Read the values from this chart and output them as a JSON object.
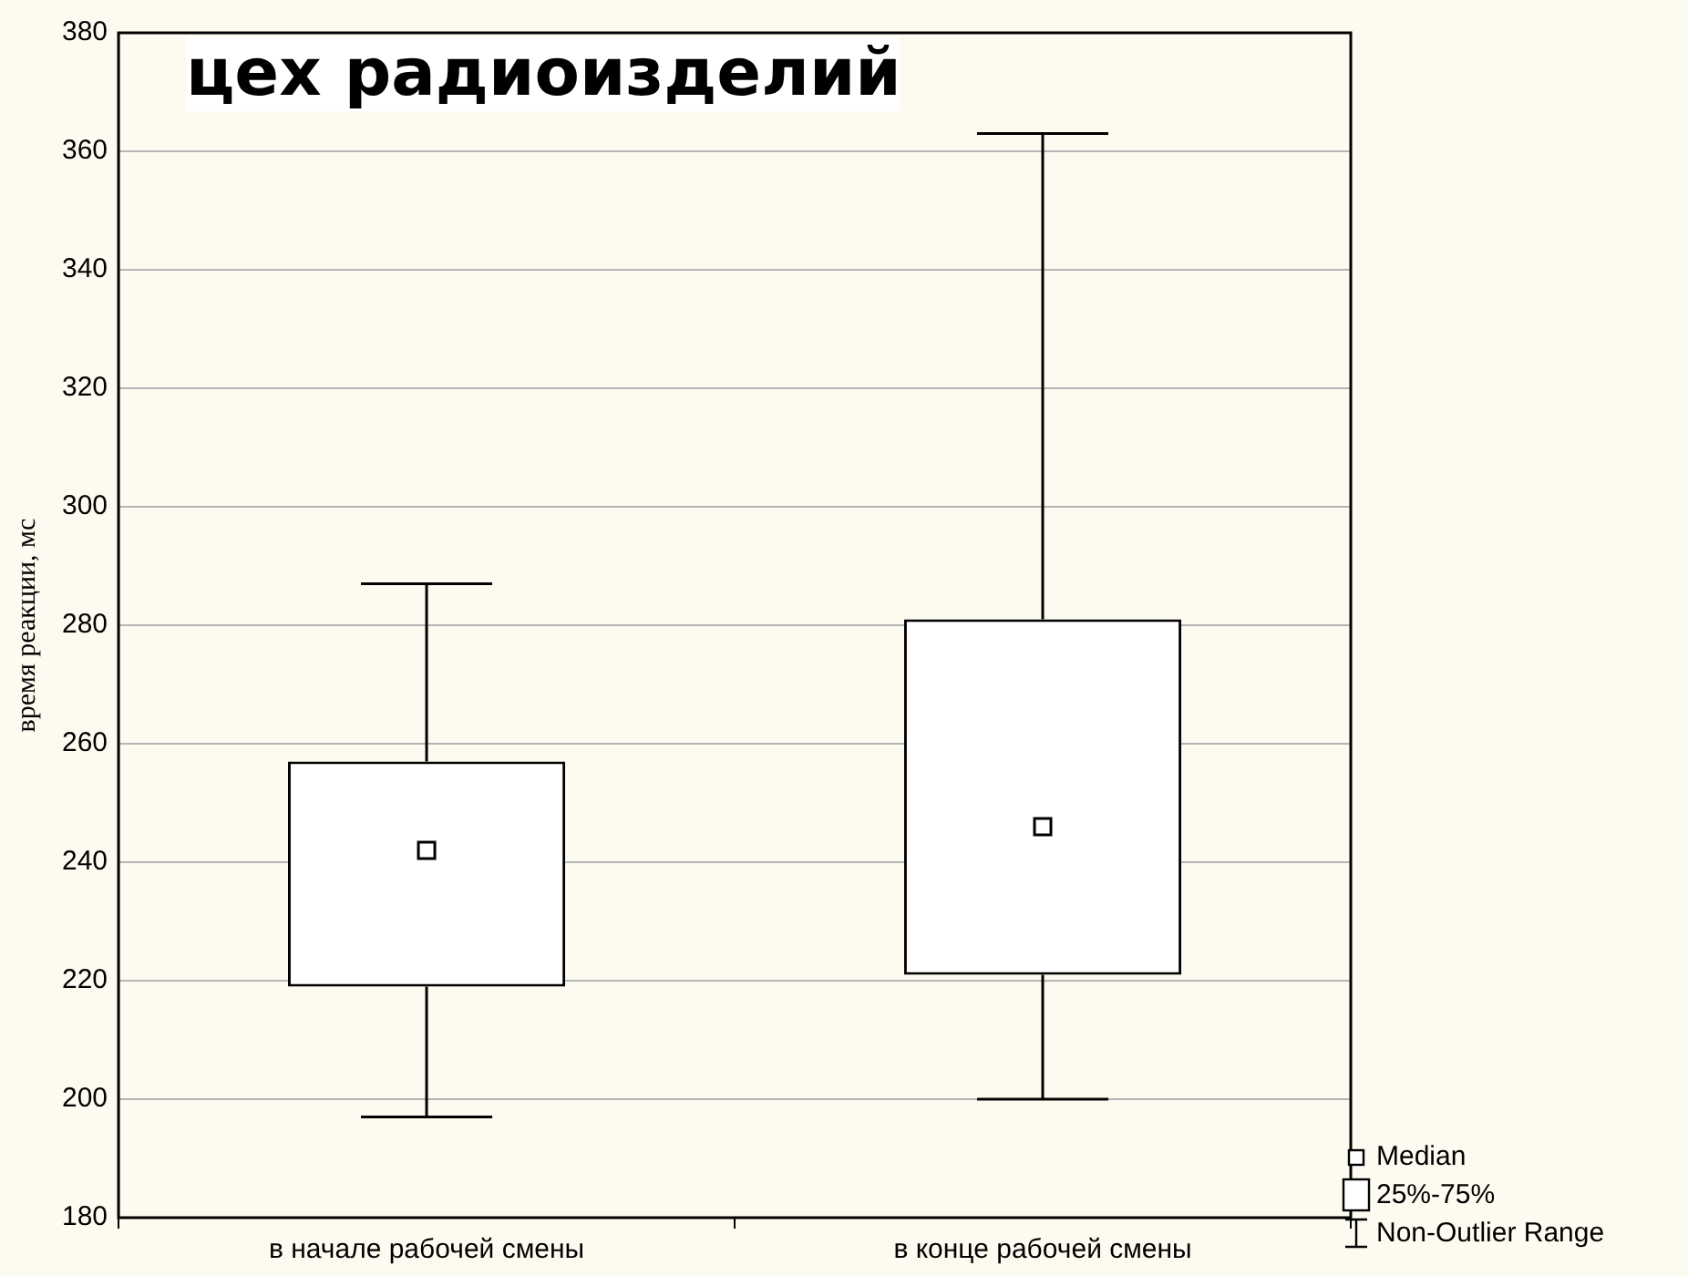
{
  "chart_data": {
    "type": "box",
    "title": "цех радиоизделий",
    "ylabel": "время реакции, мс",
    "categories": [
      "в начале рабочей смены",
      "в конце рабочей смены"
    ],
    "boxes": [
      {
        "low": 197,
        "q1": 219,
        "median": 242,
        "q3": 257,
        "high": 287
      },
      {
        "low": 200,
        "q1": 221,
        "median": 246,
        "q3": 281,
        "high": 363
      }
    ],
    "color": "#000000",
    "ylim": [
      180,
      380
    ],
    "yticks": [
      180,
      200,
      220,
      240,
      260,
      280,
      300,
      320,
      340,
      360,
      380
    ],
    "grid": "y",
    "annotations": [
      "Median",
      "25%-75%",
      "Non-Outlier Range"
    ]
  }
}
